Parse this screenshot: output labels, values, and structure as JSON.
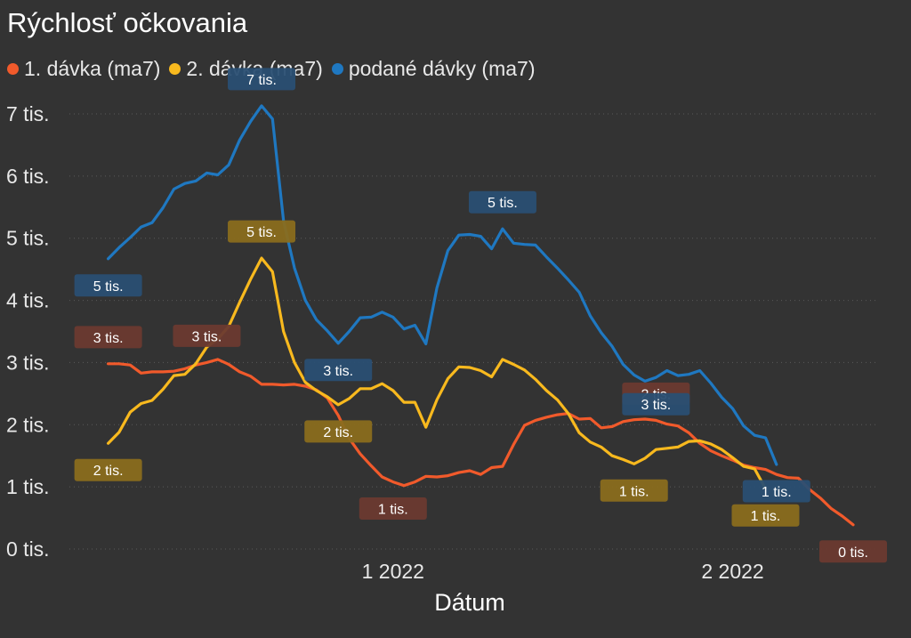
{
  "chart_data": {
    "type": "line",
    "title": "Rýchlosť očkovania",
    "xlabel": "Dátum",
    "ylabel": "",
    "x_range": [
      "2021-12-04",
      "2022-02-12"
    ],
    "x_ticks": [
      {
        "date": "2022-01-01",
        "label": "1 2022"
      },
      {
        "date": "2022-02-01",
        "label": "2 2022"
      }
    ],
    "ylim": [
      0,
      7300
    ],
    "y_ticks": [
      {
        "value": 0,
        "label": "0 tis."
      },
      {
        "value": 1000,
        "label": "1 tis."
      },
      {
        "value": 2000,
        "label": "2 tis."
      },
      {
        "value": 3000,
        "label": "3 tis."
      },
      {
        "value": 4000,
        "label": "4 tis."
      },
      {
        "value": 5000,
        "label": "5 tis."
      },
      {
        "value": 6000,
        "label": "6 tis."
      },
      {
        "value": 7000,
        "label": "7 tis."
      }
    ],
    "grid": "horizontal dotted",
    "legend_position": "top-left",
    "series": [
      {
        "name": "1. dávka (ma7)",
        "color": "#f15a2b",
        "label_color": "#6b3a30",
        "points": [
          [
            "2021-12-06",
            2980
          ],
          [
            "2021-12-07",
            2980
          ],
          [
            "2021-12-08",
            2960
          ],
          [
            "2021-12-09",
            2830
          ],
          [
            "2021-12-10",
            2850
          ],
          [
            "2021-12-11",
            2850
          ],
          [
            "2021-12-12",
            2860
          ],
          [
            "2021-12-13",
            2900
          ],
          [
            "2021-12-14",
            2960
          ],
          [
            "2021-12-15",
            3000
          ],
          [
            "2021-12-16",
            3050
          ],
          [
            "2021-12-17",
            2970
          ],
          [
            "2021-12-18",
            2850
          ],
          [
            "2021-12-19",
            2780
          ],
          [
            "2021-12-20",
            2650
          ],
          [
            "2021-12-21",
            2650
          ],
          [
            "2021-12-22",
            2640
          ],
          [
            "2021-12-23",
            2650
          ],
          [
            "2021-12-24",
            2620
          ],
          [
            "2021-12-25",
            2560
          ],
          [
            "2021-12-26",
            2430
          ],
          [
            "2021-12-27",
            2150
          ],
          [
            "2021-12-28",
            1780
          ],
          [
            "2021-12-29",
            1530
          ],
          [
            "2021-12-30",
            1340
          ],
          [
            "2021-12-31",
            1160
          ],
          [
            "2022-01-01",
            1080
          ],
          [
            "2022-01-02",
            1020
          ],
          [
            "2022-01-03",
            1080
          ],
          [
            "2022-01-04",
            1170
          ],
          [
            "2022-01-05",
            1160
          ],
          [
            "2022-01-06",
            1180
          ],
          [
            "2022-01-07",
            1230
          ],
          [
            "2022-01-08",
            1260
          ],
          [
            "2022-01-09",
            1200
          ],
          [
            "2022-01-10",
            1310
          ],
          [
            "2022-01-11",
            1330
          ],
          [
            "2022-01-12",
            1680
          ],
          [
            "2022-01-13",
            1990
          ],
          [
            "2022-01-14",
            2070
          ],
          [
            "2022-01-15",
            2120
          ],
          [
            "2022-01-16",
            2160
          ],
          [
            "2022-01-17",
            2180
          ],
          [
            "2022-01-18",
            2090
          ],
          [
            "2022-01-19",
            2100
          ],
          [
            "2022-01-20",
            1950
          ],
          [
            "2022-01-21",
            1970
          ],
          [
            "2022-01-22",
            2050
          ],
          [
            "2022-01-23",
            2080
          ],
          [
            "2022-01-24",
            2090
          ],
          [
            "2022-01-25",
            2070
          ],
          [
            "2022-01-26",
            2010
          ],
          [
            "2022-01-27",
            1980
          ],
          [
            "2022-01-28",
            1870
          ],
          [
            "2022-01-29",
            1700
          ],
          [
            "2022-01-30",
            1580
          ],
          [
            "2022-01-31",
            1500
          ],
          [
            "2022-02-01",
            1430
          ],
          [
            "2022-02-02",
            1350
          ],
          [
            "2022-02-03",
            1310
          ],
          [
            "2022-02-04",
            1280
          ],
          [
            "2022-02-05",
            1200
          ],
          [
            "2022-02-06",
            1150
          ],
          [
            "2022-02-07",
            1140
          ],
          [
            "2022-02-08",
            960
          ],
          [
            "2022-02-09",
            820
          ],
          [
            "2022-02-10",
            650
          ],
          [
            "2022-02-11",
            530
          ],
          [
            "2022-02-12",
            390
          ]
        ],
        "data_labels": [
          {
            "date": "2021-12-06",
            "text": "3 tis.",
            "where": "above"
          },
          {
            "date": "2021-12-15",
            "text": "3 tis.",
            "where": "above"
          },
          {
            "date": "2022-01-01",
            "text": "1 tis.",
            "where": "below"
          },
          {
            "date": "2022-01-25",
            "text": "2 tis.",
            "where": "above"
          },
          {
            "date": "2022-02-12",
            "text": "0 tis.",
            "where": "below"
          }
        ]
      },
      {
        "name": "2. dávka (ma7)",
        "color": "#f8b91e",
        "label_color": "#8a6d1e",
        "points": [
          [
            "2021-12-06",
            1700
          ],
          [
            "2021-12-07",
            1880
          ],
          [
            "2021-12-08",
            2200
          ],
          [
            "2021-12-09",
            2340
          ],
          [
            "2021-12-10",
            2390
          ],
          [
            "2021-12-11",
            2570
          ],
          [
            "2021-12-12",
            2790
          ],
          [
            "2021-12-13",
            2810
          ],
          [
            "2021-12-14",
            2980
          ],
          [
            "2021-12-15",
            3250
          ],
          [
            "2021-12-16",
            3380
          ],
          [
            "2021-12-17",
            3580
          ],
          [
            "2021-12-18",
            3970
          ],
          [
            "2021-12-19",
            4340
          ],
          [
            "2021-12-20",
            4680
          ],
          [
            "2021-12-21",
            4460
          ],
          [
            "2021-12-22",
            3500
          ],
          [
            "2021-12-23",
            3000
          ],
          [
            "2021-12-24",
            2680
          ],
          [
            "2021-12-25",
            2550
          ],
          [
            "2021-12-26",
            2450
          ],
          [
            "2021-12-27",
            2320
          ],
          [
            "2021-12-28",
            2420
          ],
          [
            "2021-12-29",
            2580
          ],
          [
            "2021-12-30",
            2580
          ],
          [
            "2021-12-31",
            2660
          ],
          [
            "2022-01-01",
            2550
          ],
          [
            "2022-01-02",
            2360
          ],
          [
            "2022-01-03",
            2360
          ],
          [
            "2022-01-04",
            1960
          ],
          [
            "2022-01-05",
            2400
          ],
          [
            "2022-01-06",
            2740
          ],
          [
            "2022-01-07",
            2930
          ],
          [
            "2022-01-08",
            2920
          ],
          [
            "2022-01-09",
            2870
          ],
          [
            "2022-01-10",
            2770
          ],
          [
            "2022-01-11",
            3050
          ],
          [
            "2022-01-12",
            2970
          ],
          [
            "2022-01-13",
            2880
          ],
          [
            "2022-01-14",
            2730
          ],
          [
            "2022-01-15",
            2550
          ],
          [
            "2022-01-16",
            2400
          ],
          [
            "2022-01-17",
            2180
          ],
          [
            "2022-01-18",
            1870
          ],
          [
            "2022-01-19",
            1720
          ],
          [
            "2022-01-20",
            1640
          ],
          [
            "2022-01-21",
            1500
          ],
          [
            "2022-01-22",
            1440
          ],
          [
            "2022-01-23",
            1370
          ],
          [
            "2022-01-24",
            1460
          ],
          [
            "2022-01-25",
            1600
          ],
          [
            "2022-01-26",
            1620
          ],
          [
            "2022-01-27",
            1640
          ],
          [
            "2022-01-28",
            1730
          ],
          [
            "2022-01-29",
            1740
          ],
          [
            "2022-01-30",
            1690
          ],
          [
            "2022-01-31",
            1600
          ],
          [
            "2022-02-01",
            1470
          ],
          [
            "2022-02-02",
            1330
          ],
          [
            "2022-02-03",
            1290
          ],
          [
            "2022-02-04",
            970
          ]
        ],
        "data_labels": [
          {
            "date": "2021-12-06",
            "text": "2 tis.",
            "where": "below"
          },
          {
            "date": "2021-12-20",
            "text": "5 tis.",
            "where": "above"
          },
          {
            "date": "2021-12-27",
            "text": "2 tis.",
            "where": "below"
          },
          {
            "date": "2022-01-23",
            "text": "1 tis.",
            "where": "below"
          },
          {
            "date": "2022-02-04",
            "text": "1 tis.",
            "where": "below"
          }
        ]
      },
      {
        "name": "podané dávky (ma7)",
        "color": "#1f78c1",
        "label_color": "#2a4f73",
        "points": [
          [
            "2021-12-06",
            4670
          ],
          [
            "2021-12-07",
            4850
          ],
          [
            "2021-12-08",
            5010
          ],
          [
            "2021-12-09",
            5180
          ],
          [
            "2021-12-10",
            5250
          ],
          [
            "2021-12-11",
            5490
          ],
          [
            "2021-12-12",
            5790
          ],
          [
            "2021-12-13",
            5880
          ],
          [
            "2021-12-14",
            5920
          ],
          [
            "2021-12-15",
            6050
          ],
          [
            "2021-12-16",
            6020
          ],
          [
            "2021-12-17",
            6180
          ],
          [
            "2021-12-18",
            6580
          ],
          [
            "2021-12-19",
            6880
          ],
          [
            "2021-12-20",
            7130
          ],
          [
            "2021-12-21",
            6920
          ],
          [
            "2021-12-22",
            5280
          ],
          [
            "2021-12-23",
            4520
          ],
          [
            "2021-12-24",
            4000
          ],
          [
            "2021-12-25",
            3690
          ],
          [
            "2021-12-26",
            3510
          ],
          [
            "2021-12-27",
            3310
          ],
          [
            "2021-12-28",
            3500
          ],
          [
            "2021-12-29",
            3720
          ],
          [
            "2021-12-30",
            3730
          ],
          [
            "2021-12-31",
            3810
          ],
          [
            "2022-01-01",
            3730
          ],
          [
            "2022-01-02",
            3540
          ],
          [
            "2022-01-03",
            3600
          ],
          [
            "2022-01-04",
            3300
          ],
          [
            "2022-01-05",
            4200
          ],
          [
            "2022-01-06",
            4800
          ],
          [
            "2022-01-07",
            5050
          ],
          [
            "2022-01-08",
            5060
          ],
          [
            "2022-01-09",
            5030
          ],
          [
            "2022-01-10",
            4830
          ],
          [
            "2022-01-11",
            5150
          ],
          [
            "2022-01-12",
            4920
          ],
          [
            "2022-01-13",
            4900
          ],
          [
            "2022-01-14",
            4890
          ],
          [
            "2022-01-15",
            4700
          ],
          [
            "2022-01-16",
            4520
          ],
          [
            "2022-01-17",
            4330
          ],
          [
            "2022-01-18",
            4130
          ],
          [
            "2022-01-19",
            3750
          ],
          [
            "2022-01-20",
            3480
          ],
          [
            "2022-01-21",
            3260
          ],
          [
            "2022-01-22",
            2970
          ],
          [
            "2022-01-23",
            2800
          ],
          [
            "2022-01-24",
            2700
          ],
          [
            "2022-01-25",
            2760
          ],
          [
            "2022-01-26",
            2870
          ],
          [
            "2022-01-27",
            2790
          ],
          [
            "2022-01-28",
            2810
          ],
          [
            "2022-01-29",
            2870
          ],
          [
            "2022-01-30",
            2670
          ],
          [
            "2022-01-31",
            2440
          ],
          [
            "2022-02-01",
            2260
          ],
          [
            "2022-02-02",
            1980
          ],
          [
            "2022-02-03",
            1830
          ],
          [
            "2022-02-04",
            1790
          ],
          [
            "2022-02-05",
            1360
          ]
        ],
        "data_labels": [
          {
            "date": "2021-12-06",
            "text": "5 tis.",
            "where": "below"
          },
          {
            "date": "2021-12-20",
            "text": "7 tis.",
            "where": "above"
          },
          {
            "date": "2021-12-27",
            "text": "3 tis.",
            "where": "below"
          },
          {
            "date": "2022-01-11",
            "text": "5 tis.",
            "where": "above"
          },
          {
            "date": "2022-01-25",
            "text": "3 tis.",
            "where": "below"
          },
          {
            "date": "2022-02-05",
            "text": "1 tis.",
            "where": "below"
          }
        ]
      }
    ]
  }
}
